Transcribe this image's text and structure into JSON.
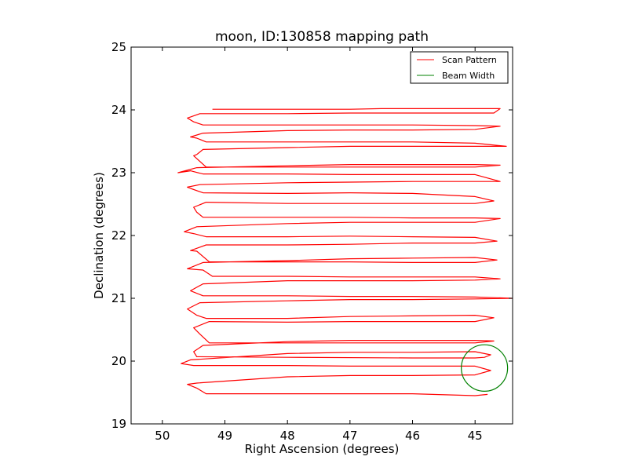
{
  "chart_data": {
    "type": "line",
    "title": "moon, ID:130858 mapping path",
    "xlabel": "Right Ascension (degrees)",
    "ylabel": "Declination (degrees)",
    "xlim": [
      50.5,
      44.4
    ],
    "ylim": [
      19,
      25
    ],
    "x_inverted": true,
    "xticks": [
      50,
      49,
      48,
      47,
      46,
      45
    ],
    "yticks": [
      19,
      20,
      21,
      22,
      23,
      24,
      25
    ],
    "grid": false,
    "legend_position": "top-right",
    "colors": {
      "scan": "#ff0000",
      "beam": "#008000",
      "axes": "#000000"
    },
    "series": [
      {
        "name": "Scan Pattern",
        "style": "line",
        "points": [
          [
            44.8,
            19.47
          ],
          [
            45.0,
            19.45
          ],
          [
            46.0,
            19.48
          ],
          [
            47.0,
            19.48
          ],
          [
            48.0,
            19.48
          ],
          [
            49.3,
            19.48
          ],
          [
            49.45,
            19.57
          ],
          [
            49.6,
            19.63
          ],
          [
            49.45,
            19.65
          ],
          [
            48.0,
            19.75
          ],
          [
            47.0,
            19.77
          ],
          [
            46.0,
            19.77
          ],
          [
            45.0,
            19.78
          ],
          [
            44.75,
            19.85
          ],
          [
            45.0,
            19.92
          ],
          [
            46.0,
            19.92
          ],
          [
            47.0,
            19.92
          ],
          [
            48.0,
            19.93
          ],
          [
            49.5,
            19.93
          ],
          [
            49.7,
            19.96
          ],
          [
            49.55,
            20.02
          ],
          [
            48.0,
            20.12
          ],
          [
            47.0,
            20.14
          ],
          [
            46.0,
            20.14
          ],
          [
            45.0,
            20.15
          ],
          [
            44.75,
            20.1
          ],
          [
            44.85,
            20.06
          ],
          [
            45.0,
            20.05
          ],
          [
            46.0,
            20.05
          ],
          [
            48.0,
            20.06
          ],
          [
            49.45,
            20.07
          ],
          [
            49.5,
            20.15
          ],
          [
            49.35,
            20.25
          ],
          [
            48.0,
            20.31
          ],
          [
            47.0,
            20.33
          ],
          [
            46.0,
            20.33
          ],
          [
            45.0,
            20.33
          ],
          [
            44.7,
            20.32
          ],
          [
            45.0,
            20.29
          ],
          [
            46.0,
            20.29
          ],
          [
            47.0,
            20.29
          ],
          [
            48.0,
            20.29
          ],
          [
            49.25,
            20.29
          ],
          [
            49.4,
            20.43
          ],
          [
            49.5,
            20.53
          ],
          [
            49.25,
            20.63
          ],
          [
            48.0,
            20.62
          ],
          [
            47.0,
            20.63
          ],
          [
            46.0,
            20.63
          ],
          [
            45.0,
            20.63
          ],
          [
            44.7,
            20.69
          ],
          [
            45.0,
            20.73
          ],
          [
            46.0,
            20.72
          ],
          [
            47.0,
            20.71
          ],
          [
            48.0,
            20.68
          ],
          [
            49.3,
            20.68
          ],
          [
            49.45,
            20.73
          ],
          [
            49.6,
            20.83
          ],
          [
            49.4,
            20.93
          ],
          [
            48.0,
            20.96
          ],
          [
            47.0,
            20.98
          ],
          [
            46.0,
            20.98
          ],
          [
            45.0,
            20.99
          ],
          [
            44.4,
            21.0
          ],
          [
            45.0,
            21.02
          ],
          [
            46.0,
            21.03
          ],
          [
            47.0,
            21.03
          ],
          [
            48.0,
            21.04
          ],
          [
            49.35,
            21.04
          ],
          [
            49.55,
            21.12
          ],
          [
            49.35,
            21.23
          ],
          [
            48.0,
            21.28
          ],
          [
            47.0,
            21.28
          ],
          [
            46.0,
            21.28
          ],
          [
            45.0,
            21.29
          ],
          [
            44.6,
            21.31
          ],
          [
            45.0,
            21.34
          ],
          [
            46.0,
            21.34
          ],
          [
            47.0,
            21.34
          ],
          [
            48.0,
            21.35
          ],
          [
            49.2,
            21.35
          ],
          [
            49.35,
            21.45
          ],
          [
            49.6,
            21.47
          ],
          [
            49.35,
            21.57
          ],
          [
            48.0,
            21.6
          ],
          [
            47.0,
            21.63
          ],
          [
            46.0,
            21.64
          ],
          [
            45.0,
            21.65
          ],
          [
            44.65,
            21.61
          ],
          [
            45.0,
            21.57
          ],
          [
            46.0,
            21.57
          ],
          [
            47.0,
            21.58
          ],
          [
            48.0,
            21.58
          ],
          [
            49.25,
            21.58
          ],
          [
            49.45,
            21.75
          ],
          [
            49.55,
            21.76
          ],
          [
            49.3,
            21.85
          ],
          [
            48.0,
            21.85
          ],
          [
            47.0,
            21.86
          ],
          [
            46.0,
            21.88
          ],
          [
            45.0,
            21.88
          ],
          [
            44.65,
            21.91
          ],
          [
            45.0,
            21.97
          ],
          [
            46.0,
            21.98
          ],
          [
            47.0,
            21.99
          ],
          [
            48.0,
            21.98
          ],
          [
            49.3,
            21.98
          ],
          [
            49.5,
            22.03
          ],
          [
            49.65,
            22.06
          ],
          [
            49.45,
            22.14
          ],
          [
            48.0,
            22.19
          ],
          [
            47.0,
            22.21
          ],
          [
            46.0,
            22.21
          ],
          [
            45.0,
            22.21
          ],
          [
            44.6,
            22.27
          ],
          [
            45.0,
            22.28
          ],
          [
            46.0,
            22.28
          ],
          [
            47.0,
            22.29
          ],
          [
            48.0,
            22.29
          ],
          [
            49.35,
            22.29
          ],
          [
            49.45,
            22.37
          ],
          [
            49.5,
            22.45
          ],
          [
            49.3,
            22.53
          ],
          [
            48.0,
            22.51
          ],
          [
            47.0,
            22.51
          ],
          [
            46.0,
            22.51
          ],
          [
            45.0,
            22.51
          ],
          [
            44.7,
            22.55
          ],
          [
            45.0,
            22.62
          ],
          [
            46.0,
            22.67
          ],
          [
            47.0,
            22.68
          ],
          [
            48.0,
            22.67
          ],
          [
            49.35,
            22.68
          ],
          [
            49.55,
            22.75
          ],
          [
            49.6,
            22.77
          ],
          [
            49.4,
            22.81
          ],
          [
            48.0,
            22.84
          ],
          [
            47.0,
            22.85
          ],
          [
            46.0,
            22.86
          ],
          [
            45.0,
            22.86
          ],
          [
            44.6,
            22.86
          ],
          [
            45.0,
            22.97
          ],
          [
            46.0,
            22.97
          ],
          [
            47.0,
            22.97
          ],
          [
            48.0,
            22.98
          ],
          [
            49.35,
            22.98
          ],
          [
            49.55,
            23.03
          ],
          [
            49.75,
            23.0
          ],
          [
            49.45,
            23.08
          ],
          [
            48.0,
            23.11
          ],
          [
            47.0,
            23.13
          ],
          [
            46.0,
            23.13
          ],
          [
            45.0,
            23.13
          ],
          [
            44.6,
            23.12
          ],
          [
            45.0,
            23.09
          ],
          [
            46.0,
            23.09
          ],
          [
            47.0,
            23.09
          ],
          [
            48.0,
            23.09
          ],
          [
            49.3,
            23.09
          ],
          [
            49.5,
            23.27
          ],
          [
            49.45,
            23.29
          ],
          [
            49.35,
            23.37
          ],
          [
            48.0,
            23.4
          ],
          [
            47.0,
            23.42
          ],
          [
            46.0,
            23.42
          ],
          [
            45.0,
            23.42
          ],
          [
            44.5,
            23.42
          ],
          [
            45.0,
            23.47
          ],
          [
            46.0,
            23.49
          ],
          [
            47.0,
            23.49
          ],
          [
            48.0,
            23.49
          ],
          [
            49.3,
            23.49
          ],
          [
            49.45,
            23.55
          ],
          [
            49.55,
            23.57
          ],
          [
            49.35,
            23.63
          ],
          [
            48.0,
            23.67
          ],
          [
            47.0,
            23.68
          ],
          [
            46.0,
            23.68
          ],
          [
            45.0,
            23.69
          ],
          [
            44.6,
            23.74
          ],
          [
            45.0,
            23.75
          ],
          [
            46.0,
            23.76
          ],
          [
            47.0,
            23.76
          ],
          [
            48.0,
            23.76
          ],
          [
            49.35,
            23.76
          ],
          [
            49.5,
            23.81
          ],
          [
            49.6,
            23.87
          ],
          [
            49.4,
            23.94
          ],
          [
            48.0,
            23.94
          ],
          [
            47.0,
            23.95
          ],
          [
            46.0,
            23.95
          ],
          [
            45.0,
            23.95
          ],
          [
            44.7,
            23.95
          ],
          [
            44.6,
            24.02
          ],
          [
            45.0,
            24.02
          ],
          [
            46.0,
            24.02
          ],
          [
            46.5,
            24.02
          ],
          [
            47.0,
            24.01
          ],
          [
            48.0,
            24.01
          ],
          [
            49.2,
            24.01
          ]
        ]
      },
      {
        "name": "Beam Width",
        "style": "circle",
        "center": [
          44.85,
          19.89
        ],
        "radius_deg": 0.37
      }
    ]
  }
}
